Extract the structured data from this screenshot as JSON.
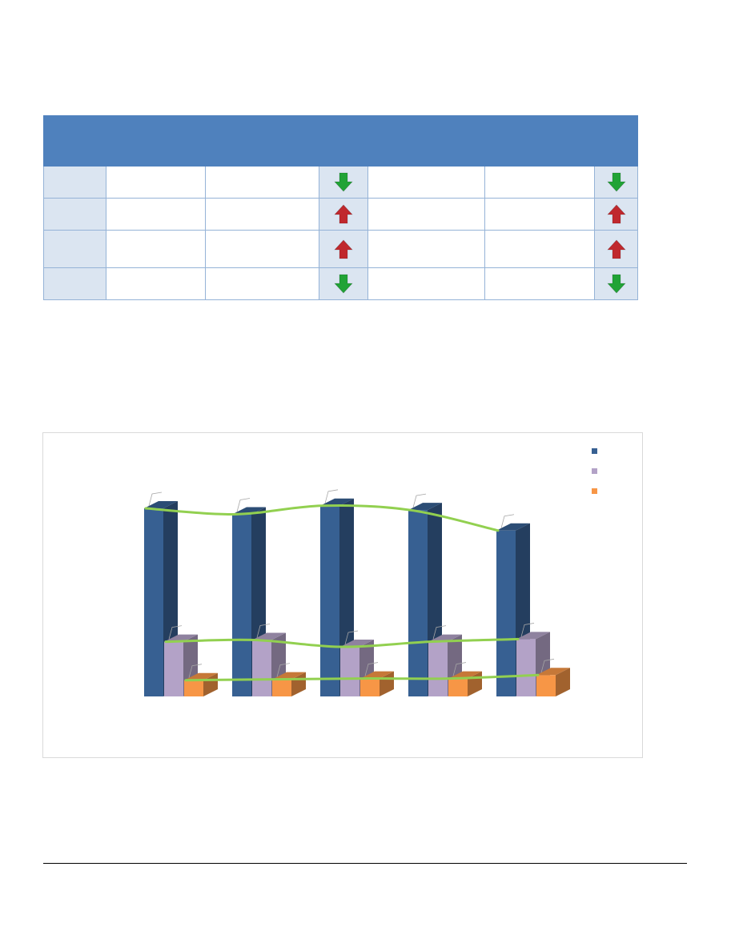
{
  "table": {
    "header_color": "#4f81bd",
    "row_shade_color": "#dbe5f1",
    "rows": [
      {
        "trend_a": "down",
        "trend_b": "down"
      },
      {
        "trend_a": "up",
        "trend_b": "up"
      },
      {
        "trend_a": "up",
        "trend_b": "up"
      },
      {
        "trend_a": "down",
        "trend_b": "down"
      }
    ],
    "icons": {
      "down": {
        "name": "green-down-arrow-icon",
        "color": "#21a336"
      },
      "up": {
        "name": "red-up-arrow-icon",
        "color": "#c0282d"
      }
    }
  },
  "chart_data": {
    "type": "bar",
    "title": "",
    "xlabel": "",
    "ylabel": "",
    "categories": [
      "",
      "",
      "",
      "",
      ""
    ],
    "series": [
      {
        "values": [
          220,
          213,
          223,
          218,
          194
        ],
        "color": "#376092"
      },
      {
        "values": [
          64,
          66,
          58,
          64,
          67
        ],
        "color": "#b3a2c7"
      },
      {
        "values": [
          19,
          20,
          21,
          21,
          25
        ],
        "color": "#f79646"
      }
    ],
    "trend_lines": {
      "color": "#92d050"
    },
    "ylim": [
      0,
      250
    ],
    "legend_position": "top-right",
    "grid": false,
    "style": "3d-clustered-column"
  }
}
